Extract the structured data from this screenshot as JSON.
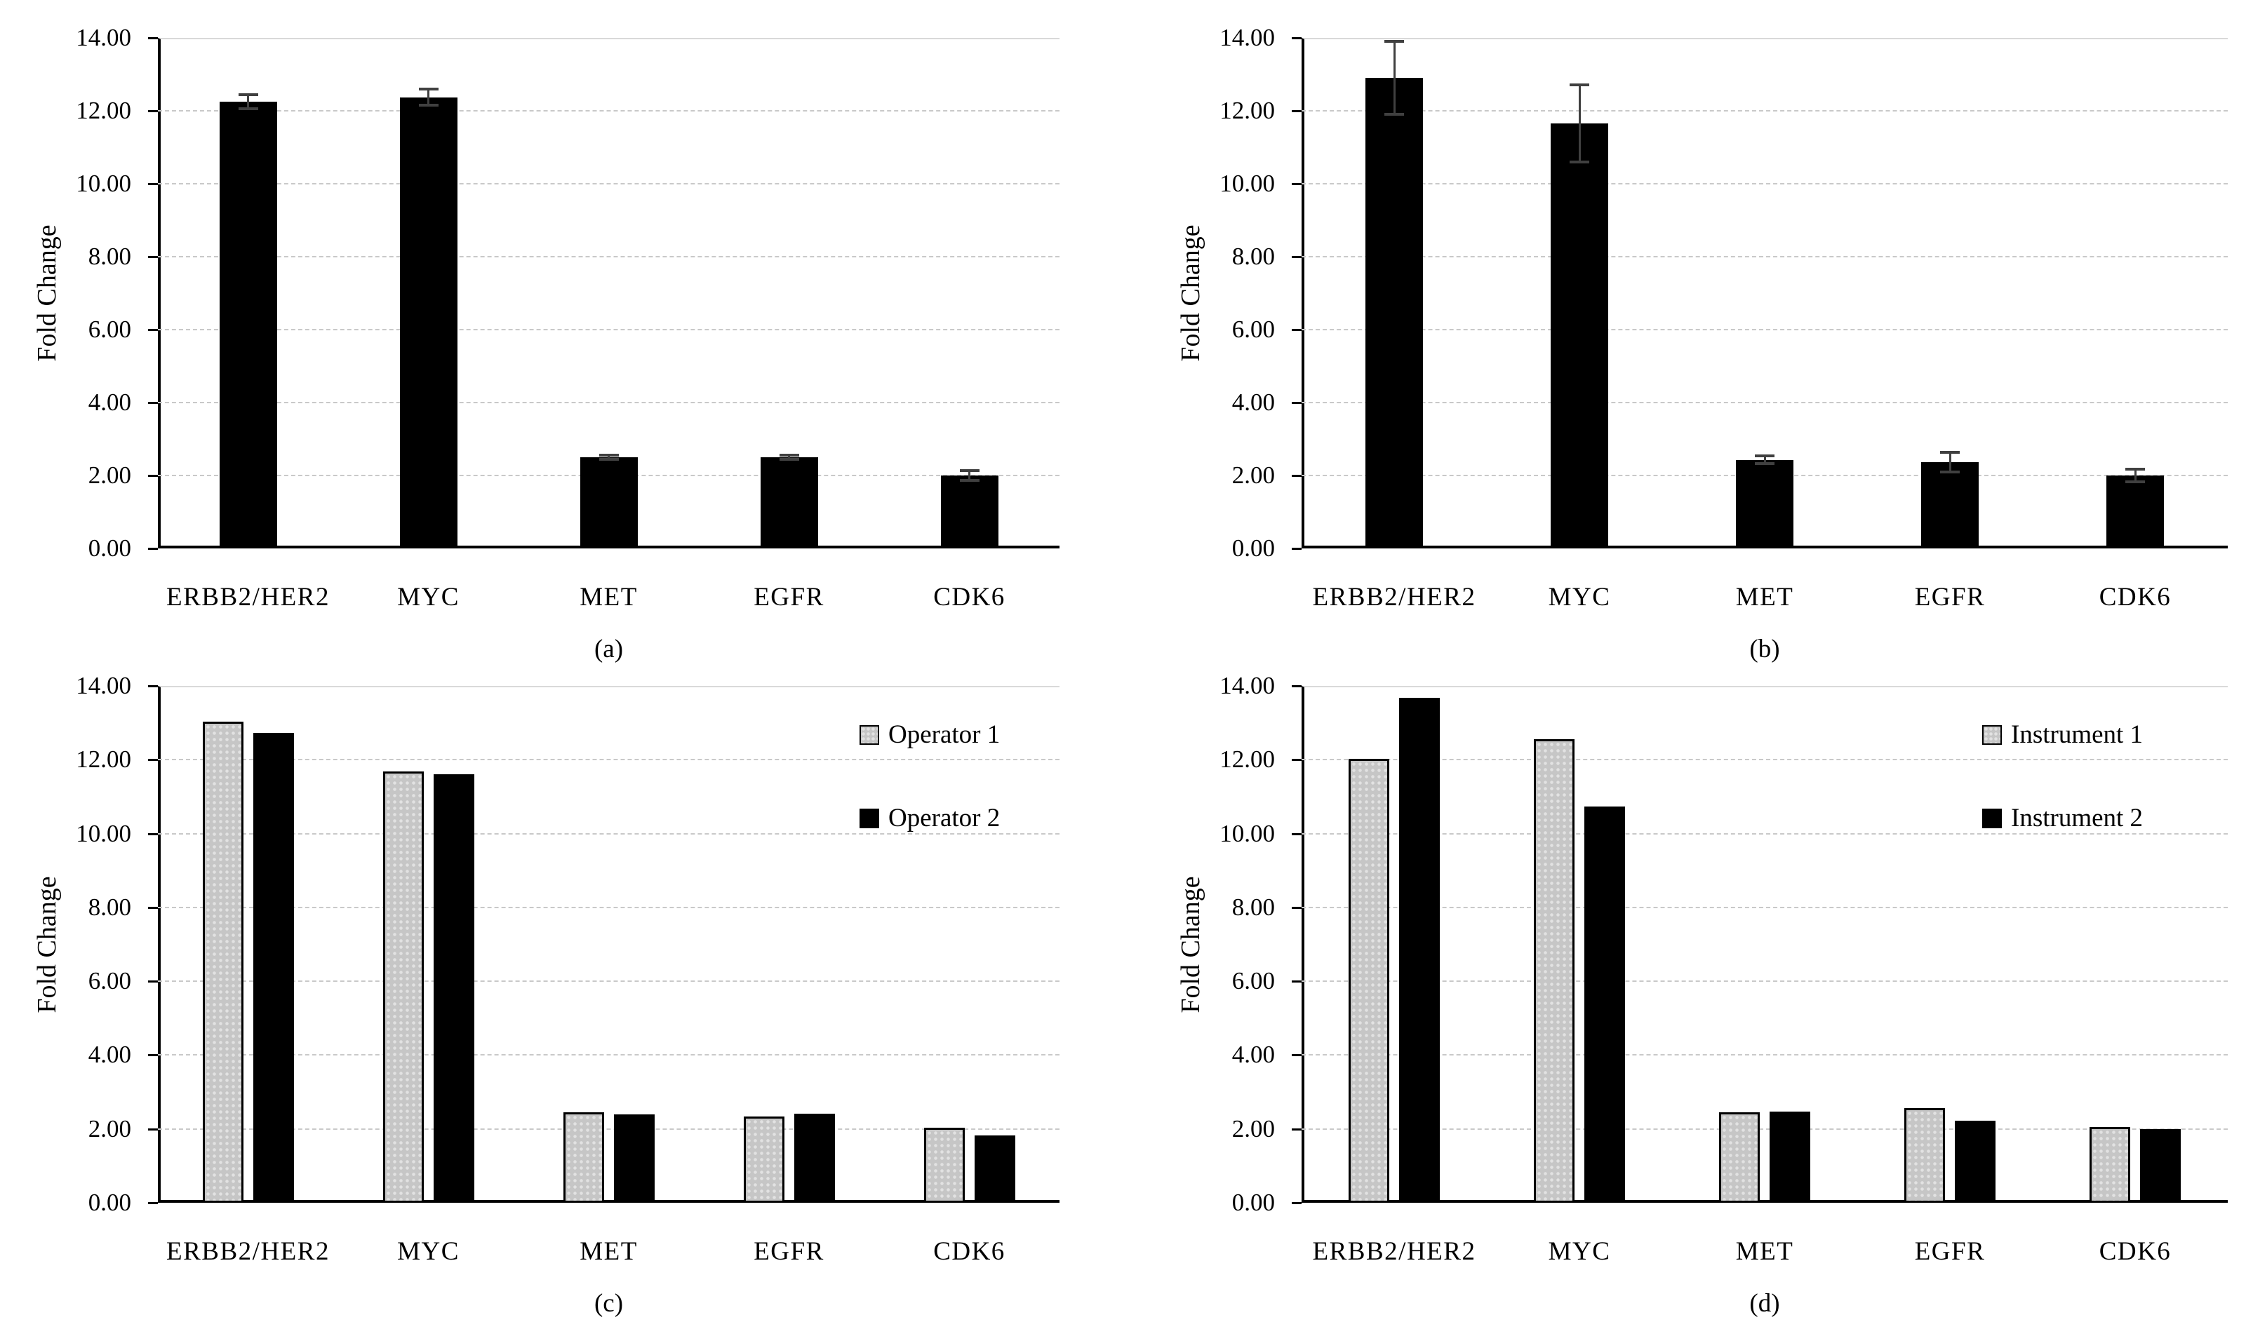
{
  "figure": {
    "background": "#ffffff",
    "axis_color": "#000000",
    "grid_color": "#c9c9c9",
    "error_bar_color": "#404040",
    "bar_black_color": "#000000",
    "bar_gray_color": "#c6c6c6"
  },
  "chart_data": [
    {
      "type": "bar",
      "panel_label": "(a)",
      "ylabel": "Fold Change",
      "ylim": [
        0,
        14
      ],
      "ytick_step": 2,
      "yticks": [
        "0.00",
        "2.00",
        "4.00",
        "6.00",
        "8.00",
        "10.00",
        "12.00",
        "14.00"
      ],
      "grid": true,
      "categories": [
        "ERBB2/HER2",
        "MYC",
        "MET",
        "EGFR",
        "CDK6"
      ],
      "series": [
        {
          "name": "",
          "fill": "black",
          "values": [
            12.25,
            12.37,
            2.5,
            2.5,
            2.0
          ],
          "errors": [
            0.2,
            0.22,
            0.06,
            0.05,
            0.13
          ]
        }
      ],
      "legend": null
    },
    {
      "type": "bar",
      "panel_label": "(b)",
      "ylabel": "Fold Change",
      "ylim": [
        0,
        14
      ],
      "ytick_step": 2,
      "yticks": [
        "0.00",
        "2.00",
        "4.00",
        "6.00",
        "8.00",
        "10.00",
        "12.00",
        "14.00"
      ],
      "grid": true,
      "categories": [
        "ERBB2/HER2",
        "MYC",
        "MET",
        "EGFR",
        "CDK6"
      ],
      "series": [
        {
          "name": "",
          "fill": "black",
          "values": [
            12.9,
            11.65,
            2.43,
            2.37,
            2.0
          ],
          "errors": [
            1.0,
            1.06,
            0.11,
            0.27,
            0.17
          ]
        }
      ],
      "legend": null
    },
    {
      "type": "bar",
      "panel_label": "(c)",
      "ylabel": "Fold Change",
      "ylim": [
        0,
        14
      ],
      "ytick_step": 2,
      "yticks": [
        "0.00",
        "2.00",
        "4.00",
        "6.00",
        "8.00",
        "10.00",
        "12.00",
        "14.00"
      ],
      "grid": true,
      "categories": [
        "ERBB2/HER2",
        "MYC",
        "MET",
        "EGFR",
        "CDK6"
      ],
      "series": [
        {
          "name": "Operator 1",
          "fill": "gray",
          "values": [
            13.03,
            11.68,
            2.45,
            2.33,
            2.03
          ],
          "errors": null
        },
        {
          "name": "Operator 2",
          "fill": "black",
          "values": [
            12.72,
            11.6,
            2.4,
            2.42,
            1.82
          ],
          "errors": null
        }
      ],
      "legend": {
        "position": "top-right",
        "entries": [
          "Operator 1",
          "Operator 2"
        ]
      }
    },
    {
      "type": "bar",
      "panel_label": "(d)",
      "ylabel": "Fold Change",
      "ylim": [
        0,
        14
      ],
      "ytick_step": 2,
      "yticks": [
        "0.00",
        "2.00",
        "4.00",
        "6.00",
        "8.00",
        "10.00",
        "12.00",
        "14.00"
      ],
      "grid": true,
      "categories": [
        "ERBB2/HER2",
        "MYC",
        "MET",
        "EGFR",
        "CDK6"
      ],
      "series": [
        {
          "name": "Instrument 1",
          "fill": "gray",
          "values": [
            12.02,
            12.55,
            2.45,
            2.57,
            2.05
          ],
          "errors": null
        },
        {
          "name": "Instrument 2",
          "fill": "black",
          "values": [
            13.67,
            10.73,
            2.47,
            2.23,
            2.0
          ],
          "errors": null
        }
      ],
      "legend": {
        "position": "top-right",
        "entries": [
          "Instrument 1",
          "Instrument 2"
        ]
      }
    }
  ]
}
